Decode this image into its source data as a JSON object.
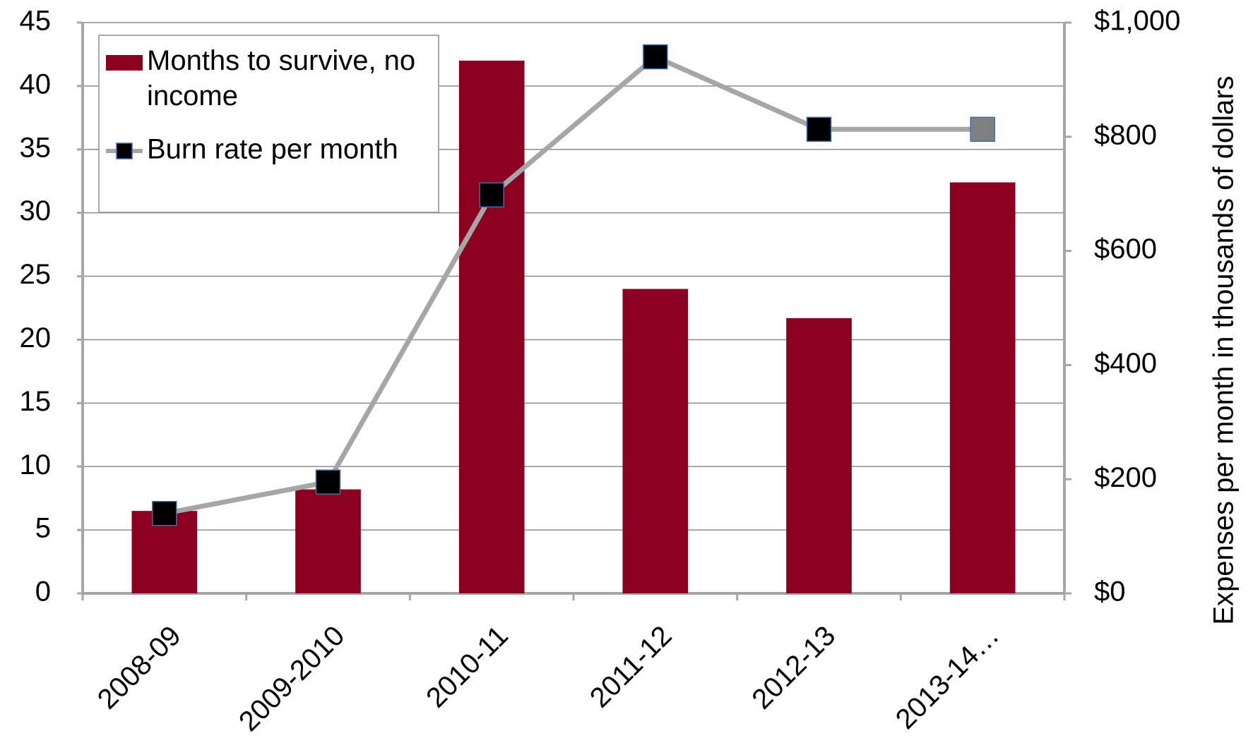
{
  "chart_data": {
    "type": "bar_line",
    "categories": [
      "2008-09",
      "2009-2010",
      "2010-11",
      "2011-12",
      "2012-13",
      "2013-14…"
    ],
    "series": [
      {
        "name": "Months to survive, no income",
        "type": "bar",
        "color": "#8b0020",
        "values": [
          6.5,
          8.2,
          42,
          24,
          21.7,
          32.4
        ]
      },
      {
        "name": "Burn rate per month",
        "type": "line",
        "axis": "y2",
        "color": "#a6a6a6",
        "marker_colors": [
          "#000000",
          "#000000",
          "#000000",
          "#000000",
          "#000000",
          "#808080"
        ],
        "values": [
          140,
          195,
          698,
          940,
          813,
          813
        ]
      }
    ],
    "ylim": [
      0,
      45
    ],
    "yticks": [
      0,
      5,
      10,
      15,
      20,
      25,
      30,
      35,
      40,
      45
    ],
    "y2lim": [
      0,
      1000
    ],
    "y2ticks": [
      {
        "value": 0,
        "label": "$0"
      },
      {
        "value": 200,
        "label": "$200"
      },
      {
        "value": 400,
        "label": "$400"
      },
      {
        "value": 600,
        "label": "$600"
      },
      {
        "value": 800,
        "label": "$800"
      },
      {
        "value": 1000,
        "label": "$1,000"
      }
    ],
    "y2label": "Expenses per month in thousands of dollars",
    "grid": true
  }
}
